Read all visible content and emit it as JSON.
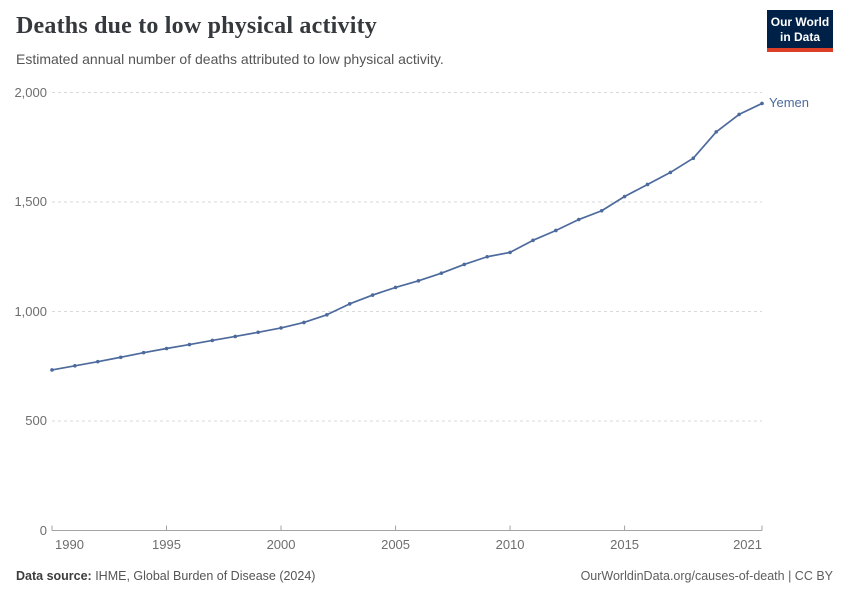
{
  "header": {
    "title": "Deaths due to low physical activity",
    "subtitle": "Estimated annual number of deaths attributed to low physical activity.",
    "logo": {
      "line1": "Our World",
      "line2": "in Data"
    }
  },
  "colors": {
    "brand_navy": "#002147",
    "brand_red": "#dc3e26",
    "line": "#4C6A9C",
    "gridline": "#dadada",
    "axis": "#a3a3a3"
  },
  "chart_data": {
    "type": "line",
    "title": "Deaths due to low physical activity",
    "subtitle": "Estimated annual number of deaths attributed to low physical activity.",
    "xlabel": "",
    "ylabel": "",
    "xlim": [
      1990,
      2021
    ],
    "ylim": [
      0,
      2000
    ],
    "grid": "horizontal-dashed",
    "legend_position": "end-of-line-label",
    "xticks": [
      1990,
      1995,
      2000,
      2005,
      2010,
      2015,
      2021
    ],
    "xtick_labels": [
      "1990",
      "1995",
      "2000",
      "2005",
      "2010",
      "2015",
      "2021"
    ],
    "yticks": [
      0,
      500,
      1000,
      1500,
      2000
    ],
    "ytick_labels": [
      "0",
      "500",
      "1,000",
      "1,500",
      "2,000"
    ],
    "series": [
      {
        "name": "Yemen",
        "color": "#4C6A9C",
        "x": [
          1990,
          1991,
          1992,
          1993,
          1994,
          1995,
          1996,
          1997,
          1998,
          1999,
          2000,
          2001,
          2002,
          2003,
          2004,
          2005,
          2006,
          2007,
          2008,
          2009,
          2010,
          2011,
          2012,
          2013,
          2014,
          2015,
          2016,
          2017,
          2018,
          2019,
          2020,
          2021
        ],
        "values": [
          733,
          752,
          771,
          791,
          812,
          831,
          849,
          868,
          886,
          905,
          925,
          950,
          985,
          1035,
          1075,
          1110,
          1140,
          1175,
          1215,
          1250,
          1270,
          1325,
          1370,
          1420,
          1460,
          1525,
          1580,
          1635,
          1700,
          1820,
          1900,
          1950
        ]
      }
    ]
  },
  "footer": {
    "source_label": "Data source:",
    "source_text": " IHME, Global Burden of Disease (2024)",
    "credit": "OurWorldinData.org/causes-of-death | CC BY"
  }
}
